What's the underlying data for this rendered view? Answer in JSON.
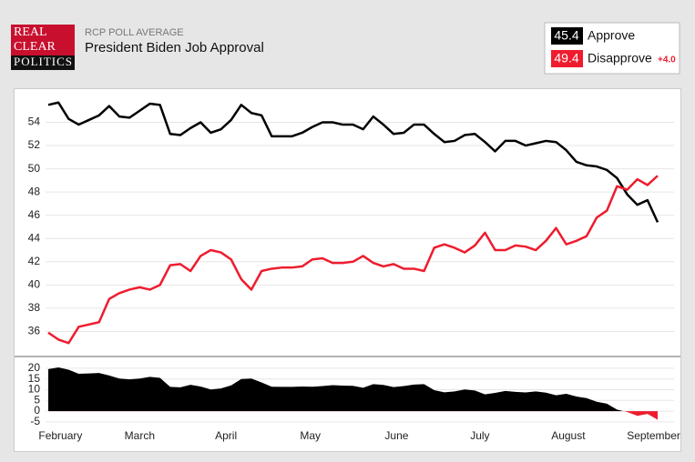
{
  "header": {
    "logo": [
      "REAL",
      "CLEAR",
      "POLITICS"
    ],
    "kicker": "RCP POLL AVERAGE",
    "title": "President Biden Job Approval",
    "spread_label": "+4.0"
  },
  "chart_data": [
    {
      "type": "line",
      "xlim": [
        0,
        60
      ],
      "ylim": [
        34,
        56.7
      ],
      "yticks": [
        36,
        38,
        40,
        42,
        44,
        46,
        48,
        50,
        52,
        54
      ],
      "grid": true,
      "series": [
        {
          "name": "Approve",
          "color": "#000000",
          "values": [
            55.5,
            55.7,
            54.3,
            53.8,
            54.2,
            54.6,
            55.4,
            54.5,
            54.4,
            55.0,
            55.6,
            55.5,
            53.0,
            52.9,
            53.5,
            54.0,
            53.1,
            53.4,
            54.2,
            55.5,
            54.8,
            54.6,
            52.8,
            52.8,
            52.8,
            53.1,
            53.6,
            54.0,
            54.0,
            53.8,
            53.8,
            53.4,
            54.5,
            53.8,
            53.0,
            53.1,
            53.8,
            53.8,
            53.0,
            52.3,
            52.4,
            52.9,
            53.0,
            52.3,
            51.5,
            52.4,
            52.4,
            52.0,
            52.2,
            52.4,
            52.3,
            51.6,
            50.6,
            50.3,
            50.2,
            49.9,
            49.2,
            47.8,
            46.9,
            47.3,
            45.4
          ]
        },
        {
          "name": "Disapprove",
          "color": "#ee1c2e",
          "values": [
            35.9,
            35.3,
            35.0,
            36.4,
            36.6,
            36.8,
            38.8,
            39.3,
            39.6,
            39.8,
            39.6,
            40.0,
            41.7,
            41.8,
            41.2,
            42.5,
            43.0,
            42.8,
            42.2,
            40.5,
            39.6,
            41.2,
            41.4,
            41.5,
            41.5,
            41.6,
            42.2,
            42.3,
            41.9,
            41.9,
            42.0,
            42.5,
            41.9,
            41.6,
            41.8,
            41.4,
            41.4,
            41.2,
            43.2,
            43.5,
            43.2,
            42.8,
            43.4,
            44.5,
            43.0,
            43.0,
            43.4,
            43.3,
            43.0,
            43.8,
            44.9,
            43.5,
            43.8,
            44.2,
            45.8,
            46.4,
            48.5,
            48.2,
            49.1,
            48.6,
            49.4
          ]
        }
      ]
    },
    {
      "type": "area",
      "xlim": [
        0,
        60
      ],
      "ylim": [
        -7.6,
        24.2
      ],
      "yticks": [
        20,
        15,
        10,
        5,
        0,
        -5
      ],
      "grid": true,
      "color": "#000000",
      "negative_color": "#ee1c2e",
      "values": [
        19.6,
        20.4,
        19.3,
        17.4,
        17.6,
        17.8,
        16.6,
        15.2,
        14.8,
        15.2,
        16.0,
        15.5,
        11.3,
        11.1,
        12.3,
        11.5,
        10.1,
        10.6,
        12.0,
        15.0,
        15.2,
        13.4,
        11.4,
        11.3,
        11.3,
        11.5,
        11.4,
        11.7,
        12.1,
        11.9,
        11.8,
        10.9,
        12.6,
        12.2,
        11.2,
        11.7,
        12.4,
        12.6,
        9.8,
        8.8,
        9.2,
        10.1,
        9.6,
        7.8,
        8.5,
        9.4,
        9.0,
        8.7,
        9.2,
        8.6,
        7.4,
        8.1,
        6.8,
        6.1,
        4.4,
        3.5,
        0.7,
        -0.4,
        -2.2,
        -1.3,
        -4.0
      ],
      "xticks": [
        {
          "value": 1.2,
          "label": "February"
        },
        {
          "value": 9.0,
          "label": "March"
        },
        {
          "value": 17.5,
          "label": "April"
        },
        {
          "value": 25.8,
          "label": "May"
        },
        {
          "value": 34.3,
          "label": "June"
        },
        {
          "value": 42.5,
          "label": "July"
        },
        {
          "value": 51.2,
          "label": "August"
        },
        {
          "value": 59.6,
          "label": "September"
        }
      ]
    }
  ]
}
